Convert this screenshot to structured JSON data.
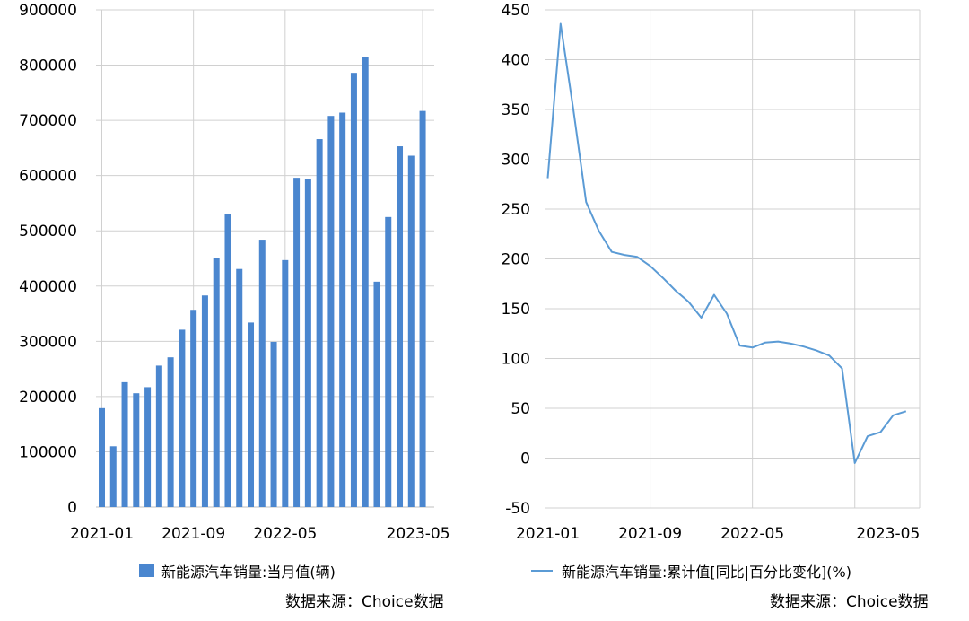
{
  "colors": {
    "bar": "#4a86cf",
    "line": "#5b9bd5",
    "grid": "#d0d0d0"
  },
  "chart_data": [
    {
      "type": "bar",
      "ylim": [
        0,
        900000
      ],
      "yticks": [
        "0",
        "100000",
        "200000",
        "300000",
        "400000",
        "500000",
        "600000",
        "700000",
        "800000",
        "900000"
      ],
      "ytick_values": [
        0,
        100000,
        200000,
        300000,
        400000,
        500000,
        600000,
        700000,
        800000,
        900000
      ],
      "xtick_labels": [
        "2021-01",
        "2021-09",
        "2022-05",
        "2023-05"
      ],
      "xtick_indices": [
        0,
        8,
        16,
        28
      ],
      "categories": [
        "2021-01",
        "2021-02",
        "2021-03",
        "2021-04",
        "2021-05",
        "2021-06",
        "2021-07",
        "2021-08",
        "2021-09",
        "2021-10",
        "2021-11",
        "2021-12",
        "2022-01",
        "2022-02",
        "2022-03",
        "2022-04",
        "2022-05",
        "2022-06",
        "2022-07",
        "2022-08",
        "2022-09",
        "2022-10",
        "2022-11",
        "2022-12",
        "2023-01",
        "2023-02",
        "2023-03",
        "2023-04",
        "2023-05"
      ],
      "series": [
        {
          "name": "新能源汽车销量:当月值(辆)",
          "values": [
            179000,
            110000,
            226000,
            206000,
            217000,
            256000,
            271000,
            321000,
            357000,
            383000,
            450000,
            531000,
            431000,
            334000,
            484000,
            299000,
            447000,
            596000,
            593000,
            666000,
            708000,
            714000,
            786000,
            814000,
            408000,
            525000,
            653000,
            636000,
            717000
          ]
        }
      ],
      "legend": "bottom",
      "grid": true,
      "source": "数据来源：Choice数据"
    },
    {
      "type": "line",
      "ylim": [
        -50,
        450
      ],
      "yticks": [
        "-50",
        "0",
        "50",
        "100",
        "150",
        "200",
        "250",
        "300",
        "350",
        "400",
        "450"
      ],
      "ytick_values": [
        -50,
        0,
        50,
        100,
        150,
        200,
        250,
        300,
        350,
        400,
        450
      ],
      "xtick_labels": [
        "2021-01",
        "2021-09",
        "2022-05",
        "2023-05"
      ],
      "xtick_indices": [
        0,
        8,
        16,
        28
      ],
      "categories": [
        "2021-01",
        "2021-02",
        "2021-03",
        "2021-04",
        "2021-05",
        "2021-06",
        "2021-07",
        "2021-08",
        "2021-09",
        "2021-10",
        "2021-11",
        "2021-12",
        "2022-01",
        "2022-02",
        "2022-03",
        "2022-04",
        "2022-05",
        "2022-06",
        "2022-07",
        "2022-08",
        "2022-09",
        "2022-10",
        "2022-11",
        "2022-12",
        "2023-01",
        "2023-02",
        "2023-03",
        "2023-04",
        "2023-05"
      ],
      "series": [
        {
          "name": "新能源汽车销量:累计值[同比|百分比变化](%)",
          "values": [
            281,
            436,
            350,
            257,
            228,
            207,
            204,
            202,
            193,
            181,
            168,
            157,
            141,
            164,
            145,
            113,
            111,
            116,
            117,
            115,
            112,
            108,
            103,
            90,
            -5,
            22,
            26,
            43,
            47
          ]
        }
      ],
      "legend": "bottom",
      "grid": true,
      "source": "数据来源：Choice数据"
    }
  ]
}
